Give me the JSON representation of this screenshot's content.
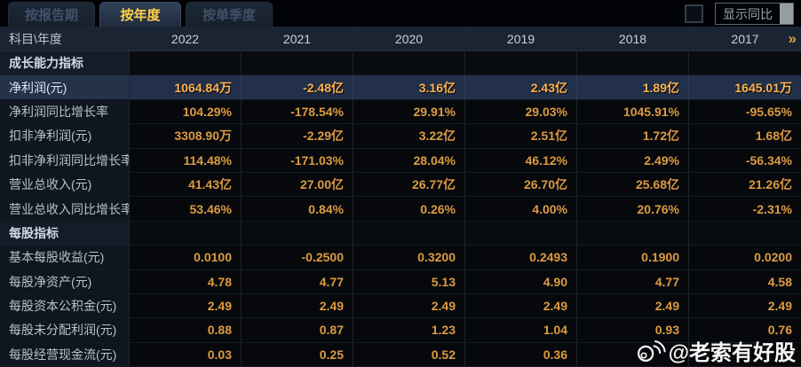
{
  "tabs": [
    {
      "id": "by-report-period",
      "label": "按报告期",
      "active": false
    },
    {
      "id": "by-year",
      "label": "按年度",
      "active": true
    },
    {
      "id": "by-quarter",
      "label": "按单季度",
      "active": false
    }
  ],
  "controls": {
    "show_yoy_label": "显示同比",
    "checkbox_checked": false
  },
  "colors": {
    "accent_value": "#dc9b41",
    "highlight_value": "#ffb24d",
    "active_tab_text": "#ffd24a",
    "header_bg": "#1b2433",
    "highlight_row_bg": "#22304a"
  },
  "table": {
    "corner_header": "科目\\年度",
    "years": [
      "2022",
      "2021",
      "2020",
      "2019",
      "2018",
      "2017"
    ],
    "more_label": "»",
    "rows": [
      {
        "type": "section",
        "label": "成长能力指标",
        "values": [
          "",
          "",
          "",
          "",
          "",
          ""
        ]
      },
      {
        "type": "data",
        "highlight": true,
        "label": "净利润(元)",
        "values": [
          "1064.84万",
          "-2.48亿",
          "3.16亿",
          "2.43亿",
          "1.89亿",
          "1645.01万"
        ]
      },
      {
        "type": "data",
        "highlight": false,
        "label": "净利润同比增长率",
        "values": [
          "104.29%",
          "-178.54%",
          "29.91%",
          "29.03%",
          "1045.91%",
          "-95.65%"
        ]
      },
      {
        "type": "data",
        "highlight": false,
        "label": "扣非净利润(元)",
        "values": [
          "3308.90万",
          "-2.29亿",
          "3.22亿",
          "2.51亿",
          "1.72亿",
          "1.68亿"
        ]
      },
      {
        "type": "data",
        "highlight": false,
        "label": "扣非净利润同比增长率",
        "values": [
          "114.48%",
          "-171.03%",
          "28.04%",
          "46.12%",
          "2.49%",
          "-56.34%"
        ]
      },
      {
        "type": "data",
        "highlight": false,
        "label": "营业总收入(元)",
        "values": [
          "41.43亿",
          "27.00亿",
          "26.77亿",
          "26.70亿",
          "25.68亿",
          "21.26亿"
        ]
      },
      {
        "type": "data",
        "highlight": false,
        "label": "营业总收入同比增长率",
        "values": [
          "53.46%",
          "0.84%",
          "0.26%",
          "4.00%",
          "20.76%",
          "-2.31%"
        ]
      },
      {
        "type": "section",
        "label": "每股指标",
        "values": [
          "",
          "",
          "",
          "",
          "",
          ""
        ]
      },
      {
        "type": "data",
        "highlight": false,
        "label": "基本每股收益(元)",
        "values": [
          "0.0100",
          "-0.2500",
          "0.3200",
          "0.2493",
          "0.1900",
          "0.0200"
        ]
      },
      {
        "type": "data",
        "highlight": false,
        "label": "每股净资产(元)",
        "values": [
          "4.78",
          "4.77",
          "5.13",
          "4.90",
          "4.77",
          "4.58"
        ]
      },
      {
        "type": "data",
        "highlight": false,
        "label": "每股资本公积金(元)",
        "values": [
          "2.49",
          "2.49",
          "2.49",
          "2.49",
          "2.49",
          "2.49"
        ]
      },
      {
        "type": "data",
        "highlight": false,
        "label": "每股未分配利润(元)",
        "values": [
          "0.88",
          "0.87",
          "1.23",
          "1.04",
          "0.93",
          "0.76"
        ]
      },
      {
        "type": "data",
        "highlight": false,
        "label": "每股经营现金流(元)",
        "values": [
          "0.03",
          "0.25",
          "0.52",
          "0.36",
          "",
          ""
        ]
      }
    ]
  },
  "watermark": {
    "text": "@老索有好股"
  }
}
